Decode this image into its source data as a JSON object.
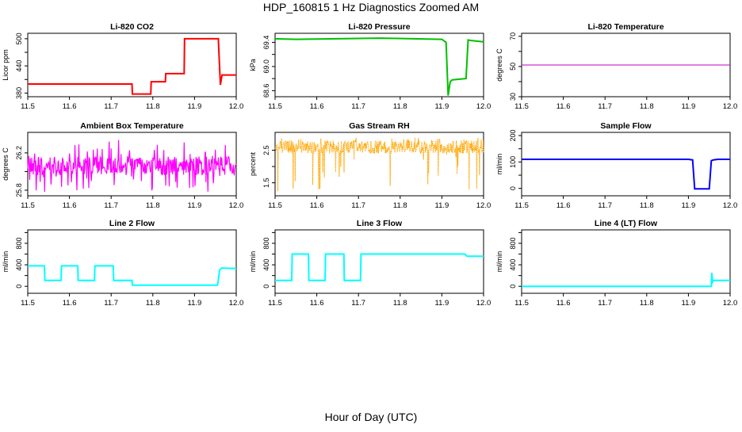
{
  "figure": {
    "title": "HDP_160815  1 Hz Diagnostics Zoomed AM",
    "xlabel": "Hour of Day (UTC)"
  },
  "chart_data": [
    {
      "type": "line",
      "title": "Li-820 CO2",
      "ylabel": "Licor ppm",
      "color": "#ff0000",
      "xlim": [
        11.5,
        12.0
      ],
      "ylim": [
        372,
        512
      ],
      "xticks": [
        11.5,
        11.6,
        11.7,
        11.8,
        11.9,
        12.0
      ],
      "xtick_labels": [
        "11.5",
        "11.6",
        "11.7",
        "11.8",
        "11.9",
        "12.0"
      ],
      "yticks": [
        380,
        440,
        500
      ],
      "ytick_labels": [
        "380",
        "440",
        "500"
      ],
      "yticks_minor": [
        410,
        470
      ],
      "series": [
        {
          "name": "",
          "x": [
            11.5,
            11.75,
            11.751,
            11.795,
            11.796,
            11.83,
            11.831,
            11.875,
            11.876,
            11.957,
            11.962,
            11.966,
            12.0
          ],
          "y": [
            400,
            400,
            378,
            378,
            405,
            405,
            423,
            423,
            500,
            500,
            398,
            420,
            420
          ]
        }
      ]
    },
    {
      "type": "line",
      "title": "Li-820 Pressure",
      "ylabel": "kPa",
      "color": "#00c000",
      "xlim": [
        11.5,
        12.0
      ],
      "ylim": [
        68.5,
        69.55
      ],
      "xticks": [
        11.5,
        11.6,
        11.7,
        11.8,
        11.9,
        12.0
      ],
      "xtick_labels": [
        "11.5",
        "11.6",
        "11.7",
        "11.8",
        "11.9",
        "12.0"
      ],
      "yticks": [
        68.6,
        69.0,
        69.4
      ],
      "ytick_labels": [
        "68.6",
        "69.0",
        "69.4"
      ],
      "yticks_minor": [
        68.8,
        69.2
      ],
      "series": [
        {
          "name": "",
          "x": [
            11.5,
            11.55,
            11.65,
            11.75,
            11.9,
            11.91,
            11.915,
            11.92,
            11.925,
            11.958,
            11.963,
            11.97,
            12.0
          ],
          "y": [
            69.46,
            69.45,
            69.46,
            69.47,
            69.45,
            69.4,
            68.52,
            68.75,
            68.78,
            68.8,
            69.44,
            69.43,
            69.41
          ]
        }
      ]
    },
    {
      "type": "line",
      "title": "Li-820 Temperature",
      "ylabel": "degrees C",
      "color": "#c000c0",
      "xlim": [
        11.5,
        12.0
      ],
      "ylim": [
        30,
        72
      ],
      "xticks": [
        11.5,
        11.6,
        11.7,
        11.8,
        11.9,
        12.0
      ],
      "xtick_labels": [
        "11.5",
        "11.6",
        "11.7",
        "11.8",
        "11.9",
        "12.0"
      ],
      "yticks": [
        30,
        50,
        70
      ],
      "ytick_labels": [
        "30",
        "50",
        "70"
      ],
      "yticks_minor": [
        40,
        60
      ],
      "series": [
        {
          "name": "",
          "x": [
            11.5,
            12.0
          ],
          "y": [
            51,
            51
          ]
        }
      ]
    },
    {
      "type": "line",
      "title": "Ambient Box Temperature",
      "ylabel": "degrees C",
      "color": "#ff00ff",
      "noise": "box",
      "xlim": [
        11.5,
        12.0
      ],
      "ylim": [
        25.74,
        26.42
      ],
      "xticks": [
        11.5,
        11.6,
        11.7,
        11.8,
        11.9,
        12.0
      ],
      "xtick_labels": [
        "11.5",
        "11.6",
        "11.7",
        "11.8",
        "11.9",
        "12.0"
      ],
      "yticks": [
        25.8,
        26.2
      ],
      "ytick_labels": [
        "25.8",
        "26.2"
      ],
      "yticks_minor": [
        26.0
      ],
      "series": [
        {
          "name": "",
          "x": [
            11.5,
            12.0
          ],
          "y": [
            26.06,
            26.06
          ],
          "band": [
            25.96,
            26.16
          ],
          "low": 25.78,
          "high": 26.34
        }
      ]
    },
    {
      "type": "line",
      "title": "Gas Stream RH",
      "ylabel": "percent",
      "color": "#ffa500",
      "noise": "rh",
      "xlim": [
        11.5,
        12.0
      ],
      "ylim": [
        1.1,
        3.05
      ],
      "xticks": [
        11.5,
        11.6,
        11.7,
        11.8,
        11.9,
        12.0
      ],
      "xtick_labels": [
        "11.5",
        "11.6",
        "11.7",
        "11.8",
        "11.9",
        "12.0"
      ],
      "yticks": [
        1.5,
        2.5
      ],
      "ytick_labels": [
        "1.5",
        "2.5"
      ],
      "yticks_minor": [
        2.0
      ],
      "series": [
        {
          "name": "",
          "x": [
            11.5,
            12.0
          ],
          "y": [
            2.6,
            2.6
          ],
          "band": [
            2.4,
            2.8
          ],
          "low": 1.2,
          "high": 2.9
        }
      ]
    },
    {
      "type": "line",
      "title": "Sample Flow",
      "ylabel": "ml/min",
      "color": "#0000ff",
      "xlim": [
        11.5,
        12.0
      ],
      "ylim": [
        -28,
        212
      ],
      "xticks": [
        11.5,
        11.6,
        11.7,
        11.8,
        11.9,
        12.0
      ],
      "xtick_labels": [
        "11.5",
        "11.6",
        "11.7",
        "11.8",
        "11.9",
        "12.0"
      ],
      "yticks": [
        0,
        100,
        200
      ],
      "ytick_labels": [
        "0",
        "100",
        "200"
      ],
      "yticks_minor": [
        50,
        150
      ],
      "series": [
        {
          "name": "",
          "x": [
            11.5,
            11.9,
            11.91,
            11.915,
            11.95,
            11.955,
            11.96,
            11.97,
            12.0
          ],
          "y": [
            110,
            110,
            108,
            -2,
            -2,
            105,
            108,
            110,
            110
          ]
        }
      ]
    },
    {
      "type": "line",
      "title": "Line 2 Flow",
      "ylabel": "ml/min",
      "color": "#00ffff",
      "xlim": [
        11.5,
        12.0
      ],
      "ylim": [
        -130,
        1050
      ],
      "xticks": [
        11.5,
        11.6,
        11.7,
        11.8,
        11.9,
        12.0
      ],
      "xtick_labels": [
        "11.5",
        "11.6",
        "11.7",
        "11.8",
        "11.9",
        "12.0"
      ],
      "yticks": [
        0,
        400,
        800
      ],
      "ytick_labels": [
        "0",
        "400",
        "800"
      ],
      "yticks_minor": [
        200,
        600,
        1000
      ],
      "series": [
        {
          "name": "",
          "x": [
            11.5,
            11.54,
            11.541,
            11.58,
            11.581,
            11.62,
            11.621,
            11.66,
            11.661,
            11.705,
            11.706,
            11.75,
            11.751,
            11.955,
            11.956,
            11.96,
            11.965,
            12.0
          ],
          "y": [
            380,
            380,
            110,
            110,
            380,
            380,
            110,
            110,
            380,
            380,
            110,
            110,
            20,
            20,
            60,
            300,
            340,
            330
          ]
        }
      ]
    },
    {
      "type": "line",
      "title": "Line 3 Flow",
      "ylabel": "ml/min",
      "color": "#00ffff",
      "xlim": [
        11.5,
        12.0
      ],
      "ylim": [
        -130,
        1050
      ],
      "xticks": [
        11.5,
        11.6,
        11.7,
        11.8,
        11.9,
        12.0
      ],
      "xtick_labels": [
        "11.5",
        "11.6",
        "11.7",
        "11.8",
        "11.9",
        "12.0"
      ],
      "yticks": [
        0,
        400,
        800
      ],
      "ytick_labels": [
        "0",
        "400",
        "800"
      ],
      "yticks_minor": [
        200,
        600,
        1000
      ],
      "series": [
        {
          "name": "",
          "x": [
            11.5,
            11.54,
            11.541,
            11.58,
            11.581,
            11.62,
            11.621,
            11.665,
            11.666,
            11.705,
            11.706,
            11.955,
            11.96,
            12.0
          ],
          "y": [
            110,
            110,
            600,
            600,
            110,
            110,
            600,
            600,
            110,
            110,
            600,
            600,
            560,
            560
          ]
        }
      ]
    },
    {
      "type": "line",
      "title": "Line 4 (LT) Flow",
      "ylabel": "ml/min",
      "color": "#00ffff",
      "xlim": [
        11.5,
        12.0
      ],
      "ylim": [
        -130,
        1050
      ],
      "xticks": [
        11.5,
        11.6,
        11.7,
        11.8,
        11.9,
        12.0
      ],
      "xtick_labels": [
        "11.5",
        "11.6",
        "11.7",
        "11.8",
        "11.9",
        "12.0"
      ],
      "yticks": [
        0,
        400,
        800
      ],
      "ytick_labels": [
        "0",
        "400",
        "800"
      ],
      "yticks_minor": [
        200,
        600,
        1000
      ],
      "series": [
        {
          "name": "",
          "x": [
            11.5,
            11.955,
            11.956,
            11.958,
            11.96,
            11.965,
            12.0
          ],
          "y": [
            0,
            0,
            250,
            80,
            110,
            110,
            110
          ]
        }
      ]
    }
  ]
}
